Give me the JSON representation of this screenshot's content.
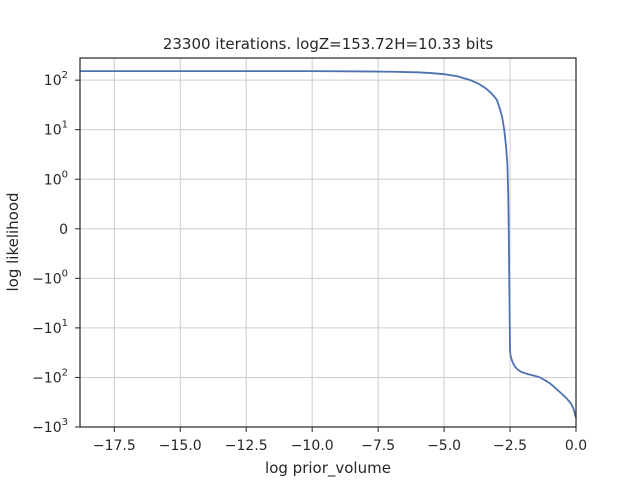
{
  "chart_data": {
    "type": "line",
    "title": "23300 iterations. logZ=153.72H=10.33 bits",
    "xlabel": "log prior_volume",
    "ylabel": "log likelihood",
    "xlim": [
      -18.8,
      0.0
    ],
    "ylim": [
      -1000,
      280
    ],
    "yscale": "symlog",
    "symlog_linthresh": 1,
    "grid": true,
    "x_ticks": [
      {
        "value": -17.5,
        "label": "−17.5"
      },
      {
        "value": -15.0,
        "label": "−15.0"
      },
      {
        "value": -12.5,
        "label": "−12.5"
      },
      {
        "value": -10.0,
        "label": "−10.0"
      },
      {
        "value": -7.5,
        "label": "−7.5"
      },
      {
        "value": -5.0,
        "label": "−5.0"
      },
      {
        "value": -2.5,
        "label": "−2.5"
      },
      {
        "value": 0.0,
        "label": "0.0"
      }
    ],
    "y_ticks": [
      {
        "value": 100,
        "base": "10",
        "exp": "2",
        "sign": ""
      },
      {
        "value": 10,
        "base": "10",
        "exp": "1",
        "sign": ""
      },
      {
        "value": 1,
        "base": "10",
        "exp": "0",
        "sign": ""
      },
      {
        "value": 0,
        "base": "0",
        "exp": "",
        "sign": ""
      },
      {
        "value": -1,
        "base": "10",
        "exp": "0",
        "sign": "−"
      },
      {
        "value": -10,
        "base": "10",
        "exp": "1",
        "sign": "−"
      },
      {
        "value": -100,
        "base": "10",
        "exp": "2",
        "sign": "−"
      },
      {
        "value": -1000,
        "base": "10",
        "exp": "3",
        "sign": "−"
      }
    ],
    "series": [
      {
        "color": "#4c72b0",
        "x": [
          -18.8,
          -16.0,
          -14.0,
          -12.0,
          -10.0,
          -8.0,
          -7.0,
          -6.0,
          -5.5,
          -5.0,
          -4.5,
          -4.0,
          -3.7,
          -3.4,
          -3.2,
          -3.0,
          -2.9,
          -2.8,
          -2.72,
          -2.65,
          -2.6,
          -2.57,
          -2.55,
          -2.53,
          -2.52,
          -2.51,
          -2.505,
          -2.5,
          -2.495,
          -2.49,
          -2.48,
          -2.46,
          -2.43,
          -2.4,
          -2.35,
          -2.3,
          -2.2,
          -2.1,
          -2.0,
          -1.8,
          -1.6,
          -1.4,
          -1.2,
          -1.0,
          -0.8,
          -0.6,
          -0.4,
          -0.2,
          -0.1,
          -0.05,
          0.0
        ],
        "y": [
          152,
          152,
          152,
          152,
          152,
          150,
          148,
          144,
          139,
          132,
          120,
          100,
          85,
          67,
          54,
          40,
          28,
          18,
          10,
          4.5,
          2,
          0.7,
          0.0,
          -1,
          -3,
          -10,
          -18,
          -26,
          -30,
          -33,
          -36,
          -40,
          -45,
          -50,
          -56,
          -62,
          -70,
          -76,
          -80,
          -86,
          -92,
          -98,
          -112,
          -130,
          -160,
          -200,
          -250,
          -330,
          -420,
          -520,
          -650
        ]
      }
    ]
  }
}
